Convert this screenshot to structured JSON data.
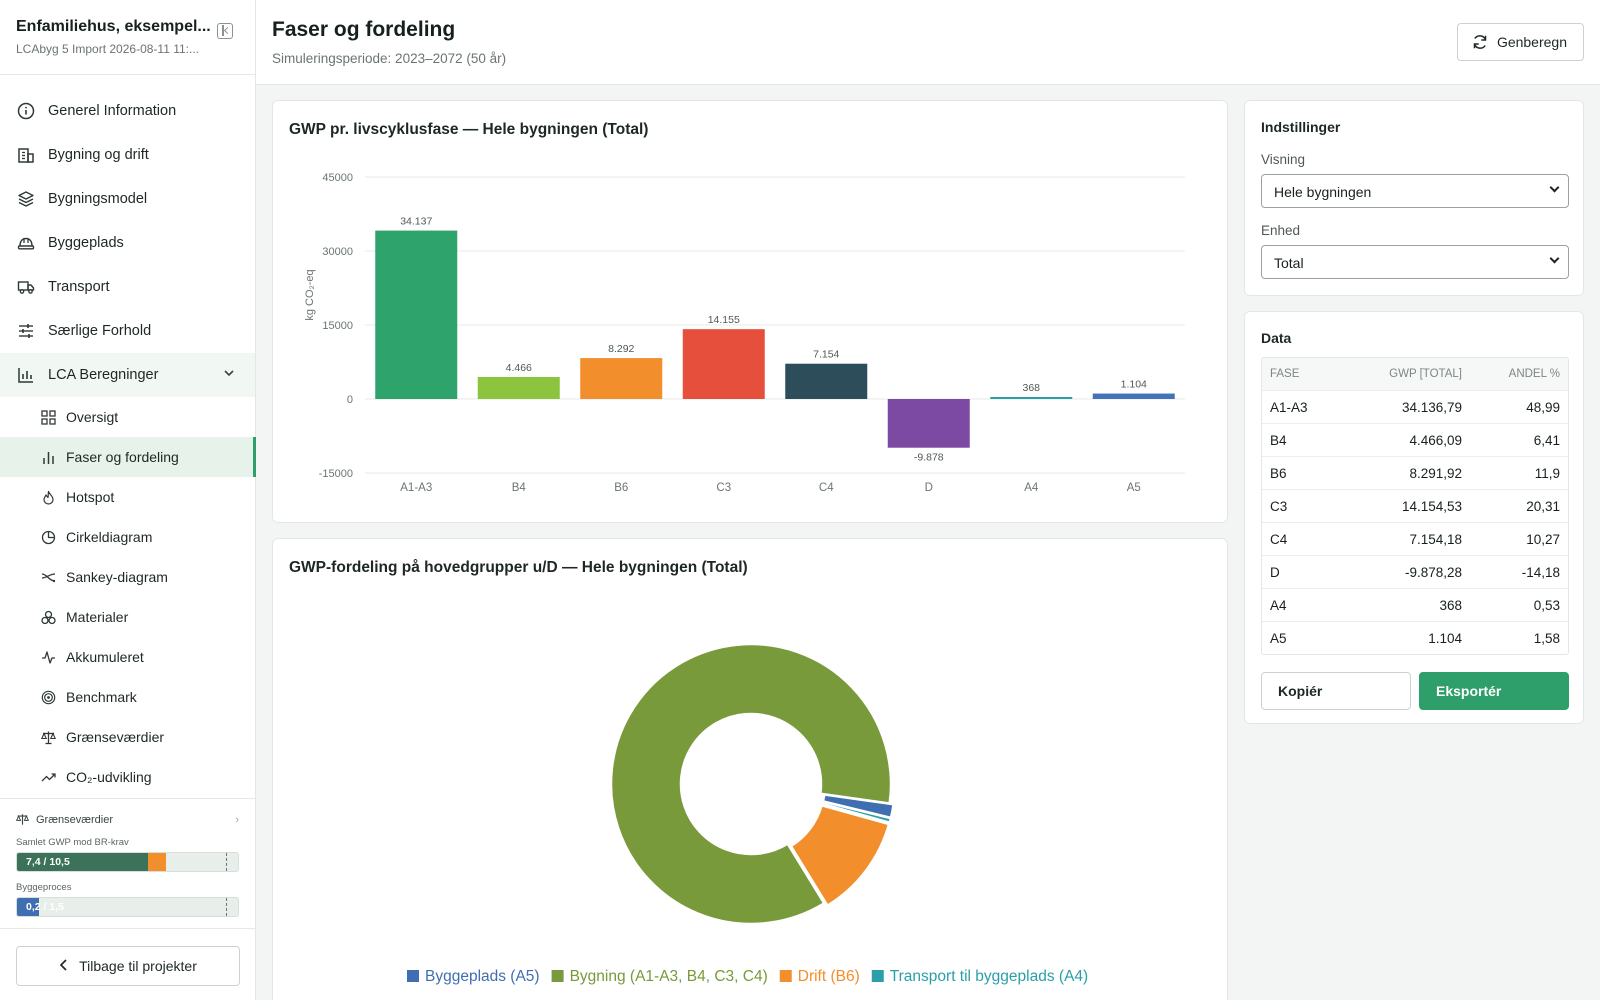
{
  "project": {
    "title": "Enfamiliehus, eksempel...",
    "subtitle": "LCAbyg 5 Import 2026-08-11 11:..."
  },
  "nav": {
    "items": [
      {
        "label": "Generel Information",
        "icon": "info-icon"
      },
      {
        "label": "Bygning og drift",
        "icon": "building-icon"
      },
      {
        "label": "Bygningsmodel",
        "icon": "layers-icon"
      },
      {
        "label": "Byggeplads",
        "icon": "hardhat-icon"
      },
      {
        "label": "Transport",
        "icon": "truck-icon"
      },
      {
        "label": "Særlige Forhold",
        "icon": "sliders-icon"
      }
    ],
    "parent": {
      "label": "LCA Beregninger",
      "icon": "bar-chart-icon"
    },
    "sub_items": [
      {
        "label": "Oversigt",
        "icon": "grid-icon"
      },
      {
        "label": "Faser og fordeling",
        "icon": "bars-icon"
      },
      {
        "label": "Hotspot",
        "icon": "flame-icon"
      },
      {
        "label": "Cirkeldiagram",
        "icon": "pie-icon"
      },
      {
        "label": "Sankey-diagram",
        "icon": "sankey-icon"
      },
      {
        "label": "Materialer",
        "icon": "boxes-icon"
      },
      {
        "label": "Akkumuleret",
        "icon": "activity-icon"
      },
      {
        "label": "Benchmark",
        "icon": "target-icon"
      },
      {
        "label": "Grænseværdier",
        "icon": "scale-icon"
      },
      {
        "label": "CO₂-udvikling",
        "icon": "trend-icon"
      }
    ]
  },
  "limits": {
    "title": "Grænseværdier",
    "bar1": {
      "label": "Samlet GWP mod BR-krav",
      "text": "7,4 / 10,5",
      "value": 7.4,
      "limit": 10.5
    },
    "bar2": {
      "label": "Byggeproces",
      "text": "0,2 / 1,5",
      "value": 0.2,
      "limit": 1.5
    }
  },
  "back_label": "Tilbage til projekter",
  "header": {
    "title": "Faser og fordeling",
    "subtitle": "Simuleringsperiode: 2023–2072 (50 år)",
    "recalc_label": "Genberegn"
  },
  "bar_card": {
    "title": "GWP pr. livscyklusfase — Hele bygningen (Total)"
  },
  "pie_card": {
    "title": "GWP-fordeling på hovedgrupper u/D — Hele bygningen (Total)"
  },
  "settings": {
    "title": "Indstillinger",
    "view_label": "Visning",
    "view_value": "Hele bygningen",
    "unit_label": "Enhed",
    "unit_value": "Total"
  },
  "data_panel": {
    "title": "Data",
    "columns": [
      "FASE",
      "GWP [TOTAL]",
      "ANDEL %"
    ],
    "rows": [
      [
        "A1-A3",
        "34.136,79",
        "48,99"
      ],
      [
        "B4",
        "4.466,09",
        "6,41"
      ],
      [
        "B6",
        "8.291,92",
        "11,9"
      ],
      [
        "C3",
        "14.154,53",
        "20,31"
      ],
      [
        "C4",
        "7.154,18",
        "10,27"
      ],
      [
        "D",
        "-9.878,28",
        "-14,18"
      ],
      [
        "A4",
        "368",
        "0,53"
      ],
      [
        "A5",
        "1.104",
        "1,58"
      ]
    ],
    "copy_label": "Kopiér",
    "export_label": "Eksportér"
  },
  "chart_data": [
    {
      "type": "bar",
      "title": "GWP pr. livscyklusfase — Hele bygningen (Total)",
      "ylabel": "kg CO₂-eq",
      "ylim": [
        -15000,
        45000
      ],
      "yticks": [
        -15000,
        0,
        15000,
        30000,
        45000
      ],
      "ytick_labels": [
        "-15000",
        "0",
        "15000",
        "30000",
        "45000"
      ],
      "grid": true,
      "categories": [
        "A1-A3",
        "B4",
        "B6",
        "C3",
        "C4",
        "D",
        "A4",
        "A5"
      ],
      "values": [
        34137,
        4466,
        8292,
        14155,
        7154,
        -9878,
        368,
        1104
      ],
      "value_labels": [
        "34.137",
        "4.466",
        "8.292",
        "14.155",
        "7.154",
        "-9.878",
        "368",
        "1.104"
      ],
      "colors": [
        "#2ea36c",
        "#8cc43e",
        "#f28e2b",
        "#e54f3c",
        "#2d4d5a",
        "#7d4aa3",
        "#2a9fa8",
        "#4472b8"
      ]
    },
    {
      "type": "pie",
      "title": "GWP-fordeling på hovedgrupper u/D — Hele bygningen (Total)",
      "legend_position": "bottom",
      "series": [
        {
          "name": "Byggeplads (A5)",
          "value": 1104,
          "color": "#3f6fb0"
        },
        {
          "name": "Bygning (A1-A3, B4, C3, C4)",
          "value": 59911,
          "color": "#789a3a"
        },
        {
          "name": "Drift (B6)",
          "value": 8292,
          "color": "#f28e2b"
        },
        {
          "name": "Transport til byggeplads (A4)",
          "value": 368,
          "color": "#2a9fa8"
        }
      ]
    }
  ]
}
